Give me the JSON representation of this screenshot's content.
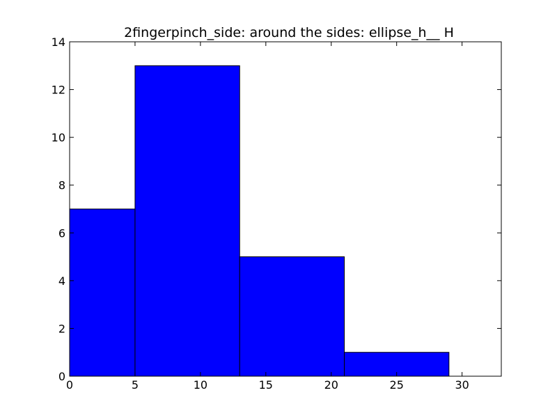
{
  "chart_data": {
    "type": "bar",
    "title": "2fingerpinch_side: around the sides: ellipse_h__ H",
    "xlabel": "",
    "ylabel": "",
    "bins": [
      {
        "start": 0,
        "end": 5,
        "value": 7
      },
      {
        "start": 5,
        "end": 13,
        "value": 13
      },
      {
        "start": 13,
        "end": 21,
        "value": 5
      },
      {
        "start": 21,
        "end": 29,
        "value": 1
      }
    ],
    "xlim": [
      0,
      33
    ],
    "ylim": [
      0,
      14
    ],
    "xticks": [
      0,
      5,
      10,
      15,
      20,
      25,
      30
    ],
    "yticks": [
      0,
      2,
      4,
      6,
      8,
      10,
      12,
      14
    ],
    "grid": false,
    "bar_color": "#0000ff",
    "edge_color": "#000000"
  }
}
